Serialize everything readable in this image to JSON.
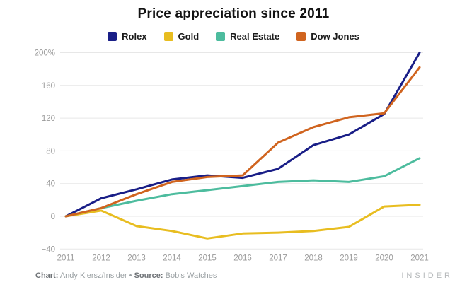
{
  "title": "Price appreciation since 2011",
  "colors": {
    "rolex": "#191e87",
    "gold": "#e8bd20",
    "real_estate": "#4dbc9e",
    "dow_jones": "#d0641f",
    "gridline": "#e7e7e7",
    "tick_text": "#9b9b9b"
  },
  "chart_data": {
    "type": "line",
    "title": "Price appreciation since 2011",
    "x": [
      2011,
      2012,
      2013,
      2014,
      2015,
      2016,
      2017,
      2018,
      2019,
      2020,
      2021
    ],
    "series": [
      {
        "name": "Rolex",
        "color": "#191e87",
        "values": [
          0,
          22,
          33,
          45,
          50,
          47,
          58,
          87,
          100,
          125,
          200
        ]
      },
      {
        "name": "Gold",
        "color": "#e8bd20",
        "values": [
          0,
          7,
          -12,
          -18,
          -27,
          -21,
          -20,
          -18,
          -13,
          12,
          14
        ]
      },
      {
        "name": "Real Estate",
        "color": "#4dbc9e",
        "values": [
          0,
          10,
          19,
          27,
          32,
          37,
          42,
          44,
          42,
          49,
          71
        ]
      },
      {
        "name": "Dow Jones",
        "color": "#d0641f",
        "values": [
          0,
          10,
          27,
          42,
          48,
          50,
          90,
          109,
          121,
          126,
          182
        ]
      }
    ],
    "ylim": [
      -40,
      200
    ],
    "yticks": [
      -40,
      0,
      40,
      80,
      120,
      160,
      200
    ],
    "ytick_labels": [
      "−40",
      "0",
      "40",
      "80",
      "120",
      "160",
      "200%"
    ],
    "xlabel": "",
    "ylabel": "",
    "grid": "horizontal",
    "legend_position": "top"
  },
  "legend": {
    "items": [
      {
        "label": "Rolex"
      },
      {
        "label": "Gold"
      },
      {
        "label": "Real Estate"
      },
      {
        "label": "Dow Jones"
      }
    ]
  },
  "footer": {
    "chart_label": "Chart:",
    "chart_value": " Andy Kiersz/Insider ",
    "separator": "• ",
    "source_label": "Source:",
    "source_value": " Bob’s Watches",
    "brand": "INSIDER"
  }
}
